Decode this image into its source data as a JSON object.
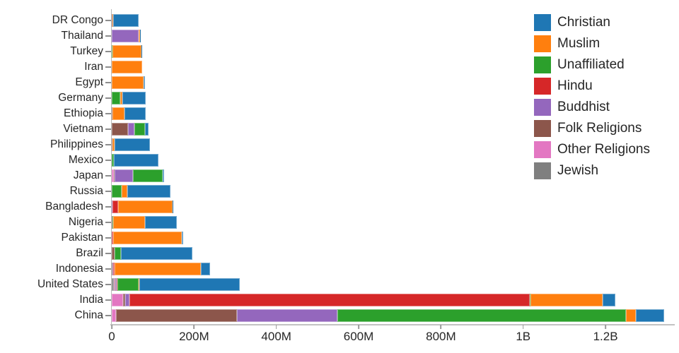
{
  "chart_data": {
    "type": "bar",
    "orientation": "horizontal",
    "stacked": true,
    "title": "",
    "xlabel": "",
    "ylabel": "",
    "unit": "millions of people",
    "xlim": [
      0,
      1358
    ],
    "grid": false,
    "legend_position": "upper right",
    "stack_order": "segments drawn left-to-right in reverse legend order (Jewish first, Christian last)",
    "x_ticks": [
      {
        "label": "0",
        "value": 0
      },
      {
        "label": "200M",
        "value": 200
      },
      {
        "label": "400M",
        "value": 400
      },
      {
        "label": "600M",
        "value": 600
      },
      {
        "label": "800M",
        "value": 800
      },
      {
        "label": "1B",
        "value": 1000
      },
      {
        "label": "1.2B",
        "value": 1200
      }
    ],
    "categories": [
      "DR Congo",
      "Thailand",
      "Turkey",
      "Iran",
      "Egypt",
      "Germany",
      "Ethiopia",
      "Vietnam",
      "Philippines",
      "Mexico",
      "Japan",
      "Russia",
      "Bangladesh",
      "Nigeria",
      "Pakistan",
      "Brazil",
      "Indonesia",
      "United States",
      "India",
      "China"
    ],
    "series": [
      {
        "name": "Christian",
        "color": "#1f77b4",
        "values": [
          63.2,
          0.6,
          0.3,
          0.1,
          4.1,
          56.5,
          52.6,
          7.2,
          86.4,
          107.8,
          2.0,
          104.8,
          0.3,
          78.1,
          2.8,
          173.3,
          23.7,
          243.1,
          31.1,
          68.4
        ]
      },
      {
        "name": "Muslim",
        "color": "#ff7f0e",
        "values": [
          1.0,
          3.8,
          71.3,
          73.6,
          77.0,
          4.8,
          28.7,
          0.2,
          5.1,
          0.0,
          0.2,
          14.3,
          133.5,
          77.3,
          167.4,
          0.0,
          209.1,
          2.8,
          176.2,
          24.7
        ]
      },
      {
        "name": "Unaffiliated",
        "color": "#2ca02c",
        "values": [
          0.5,
          0.2,
          0.9,
          0.1,
          0.0,
          20.3,
          0.1,
          26.6,
          0.1,
          5.3,
          72.1,
          23.2,
          0.2,
          0.7,
          0.0,
          15.4,
          0.2,
          51.0,
          0.9,
          700.7
        ]
      },
      {
        "name": "Hindu",
        "color": "#d62728",
        "values": [
          0.0,
          0.1,
          0.0,
          0.0,
          0.0,
          0.1,
          0.0,
          0.1,
          0.0,
          0.0,
          0.0,
          0.0,
          13.5,
          0.0,
          3.3,
          0.0,
          4.1,
          1.8,
          973.8,
          0.0
        ]
      },
      {
        "name": "Buddhist",
        "color": "#9467bd",
        "values": [
          0.0,
          64.4,
          0.0,
          0.0,
          0.0,
          0.3,
          0.0,
          14.4,
          0.0,
          0.0,
          45.8,
          0.1,
          0.7,
          0.0,
          0.0,
          0.5,
          1.7,
          3.6,
          9.3,
          244.1
        ]
      },
      {
        "name": "Folk Religions",
        "color": "#8c564b",
        "values": [
          1.2,
          0.1,
          0.0,
          0.0,
          0.0,
          0.1,
          1.7,
          39.8,
          1.4,
          0.2,
          0.5,
          0.3,
          0.4,
          2.3,
          0.0,
          5.5,
          0.7,
          0.6,
          5.8,
          294.3
        ]
      },
      {
        "name": "Other Religions",
        "color": "#e377c2",
        "values": [
          0.2,
          0.0,
          0.2,
          0.2,
          0.1,
          0.1,
          0.0,
          0.5,
          0.2,
          0.1,
          6.0,
          0.0,
          0.1,
          0.1,
          0.0,
          0.6,
          0.3,
          1.9,
          27.6,
          9.9
        ]
      },
      {
        "name": "Jewish",
        "color": "#7f7f7f",
        "values": [
          0.0,
          0.0,
          0.0,
          0.0,
          0.0,
          0.3,
          0.0,
          0.0,
          0.0,
          0.1,
          0.0,
          0.3,
          0.0,
          0.0,
          0.0,
          0.1,
          0.0,
          5.7,
          0.0,
          0.0
        ]
      }
    ]
  }
}
